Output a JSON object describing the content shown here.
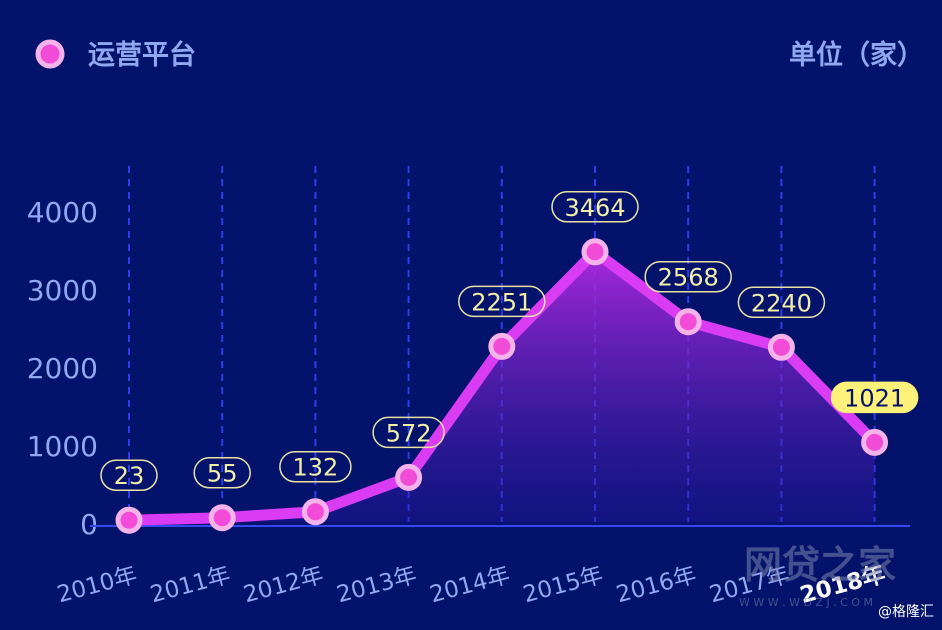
{
  "theme": {
    "background": "#03126b",
    "line": "#d93cf3",
    "marker_fill": "#f24bd7",
    "marker_ring": "#f6b3ea",
    "text": "#8fa8f0",
    "label_border": "#e8e3a3",
    "label_text": "#f2eea8",
    "highlight_fill": "#fff27a",
    "highlight_text": "#03126b",
    "gridline": "#2b3ee8",
    "axis": "#3348f0",
    "watermark": "#7c83ad"
  },
  "legend": {
    "label": "运营平台",
    "marker_icon": "circle-marker-icon"
  },
  "unit_label": "单位（家）",
  "watermark": {
    "logo": "网贷之家",
    "url": "W W W . W D Z J . C O M",
    "credit": "@格隆汇"
  },
  "chart_data": {
    "type": "area",
    "categories": [
      "2010年",
      "2011年",
      "2012年",
      "2013年",
      "2014年",
      "2015年",
      "2016年",
      "2017年",
      "2018年"
    ],
    "series": [
      {
        "name": "运营平台",
        "values": [
          23,
          55,
          132,
          572,
          2251,
          3464,
          2568,
          2240,
          1021
        ]
      }
    ],
    "data_labels": [
      "23",
      "55",
      "132",
      "572",
      "2251",
      "3464",
      "2568",
      "2240",
      "1021"
    ],
    "highlight_index": 8,
    "y_ticks": [
      0,
      1000,
      2000,
      3000,
      4000
    ],
    "ylim": [
      0,
      4000
    ],
    "grid": {
      "vertical": true,
      "horizontal": false
    },
    "legend_position": "top-left",
    "title": "",
    "xlabel": "",
    "ylabel": "单位（家）"
  }
}
